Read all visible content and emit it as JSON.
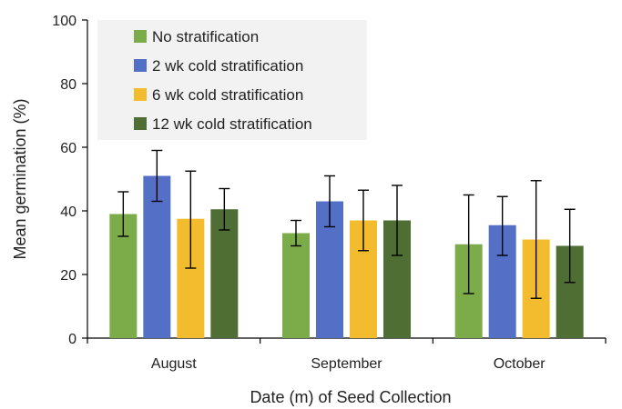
{
  "chart_data": {
    "type": "bar",
    "title": "",
    "xlabel": "Date (m) of Seed Collection",
    "ylabel": "Mean germination (%)",
    "ylim": [
      0,
      100
    ],
    "yticks": [
      0,
      20,
      40,
      60,
      80,
      100
    ],
    "categories": [
      "August",
      "September",
      "October"
    ],
    "legend_position": "top-left",
    "legend_background": "#f2f2f2",
    "grid": false,
    "series": [
      {
        "name": "No stratification",
        "color": "#7cab4a",
        "values": [
          39,
          33,
          29.5
        ],
        "error_low": [
          32,
          29,
          14
        ],
        "error_high": [
          46,
          37,
          45
        ]
      },
      {
        "name": "2 wk cold stratification",
        "color": "#5470c6",
        "values": [
          51,
          43,
          35.5
        ],
        "error_low": [
          43,
          35,
          26
        ],
        "error_high": [
          59,
          51,
          44.5
        ]
      },
      {
        "name": "6 wk cold stratification",
        "color": "#f2bc2e",
        "values": [
          37.5,
          37,
          31
        ],
        "error_low": [
          22,
          27.5,
          12.5
        ],
        "error_high": [
          52.5,
          46.5,
          49.5
        ]
      },
      {
        "name": "12 wk cold stratification",
        "color": "#4f6e34",
        "values": [
          40.5,
          37,
          29
        ],
        "error_low": [
          34,
          26,
          17.5
        ],
        "error_high": [
          47,
          48,
          40.5
        ]
      }
    ]
  }
}
